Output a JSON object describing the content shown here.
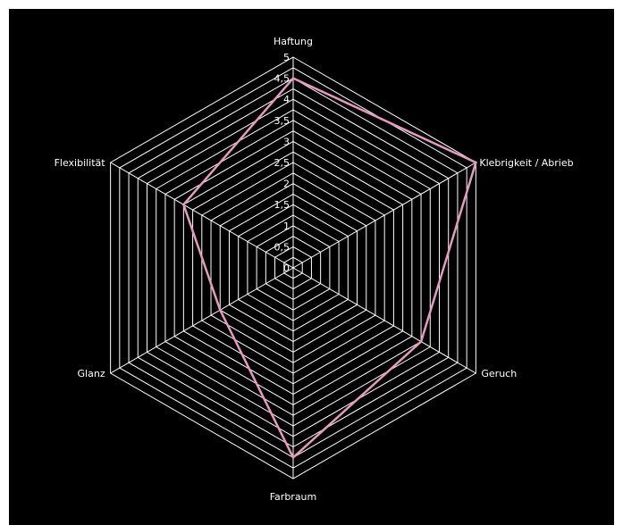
{
  "chart_data": {
    "type": "radar",
    "title": "",
    "axes": [
      "Haftung",
      "Klebrigkeit / Abrieb",
      "Geruch",
      "Farbraum",
      "Glanz",
      "Flexibilität"
    ],
    "rlim": [
      0,
      5
    ],
    "ticks": [
      "0",
      "0,5",
      "1",
      "1,5",
      "2",
      "2,5",
      "3",
      "3,5",
      "4",
      "4,5",
      "5"
    ],
    "tick_values": [
      0,
      0.5,
      1,
      1.5,
      2,
      2.5,
      3,
      3.5,
      4,
      4.5,
      5
    ],
    "grid": true,
    "legend": "none",
    "series": [
      {
        "values": [
          4.5,
          5,
          3.5,
          4.5,
          2,
          3
        ],
        "color": "#e59bbe"
      }
    ]
  },
  "colors": {
    "background": "#000000",
    "grid": "#ffffff",
    "text": "#ffffff"
  }
}
